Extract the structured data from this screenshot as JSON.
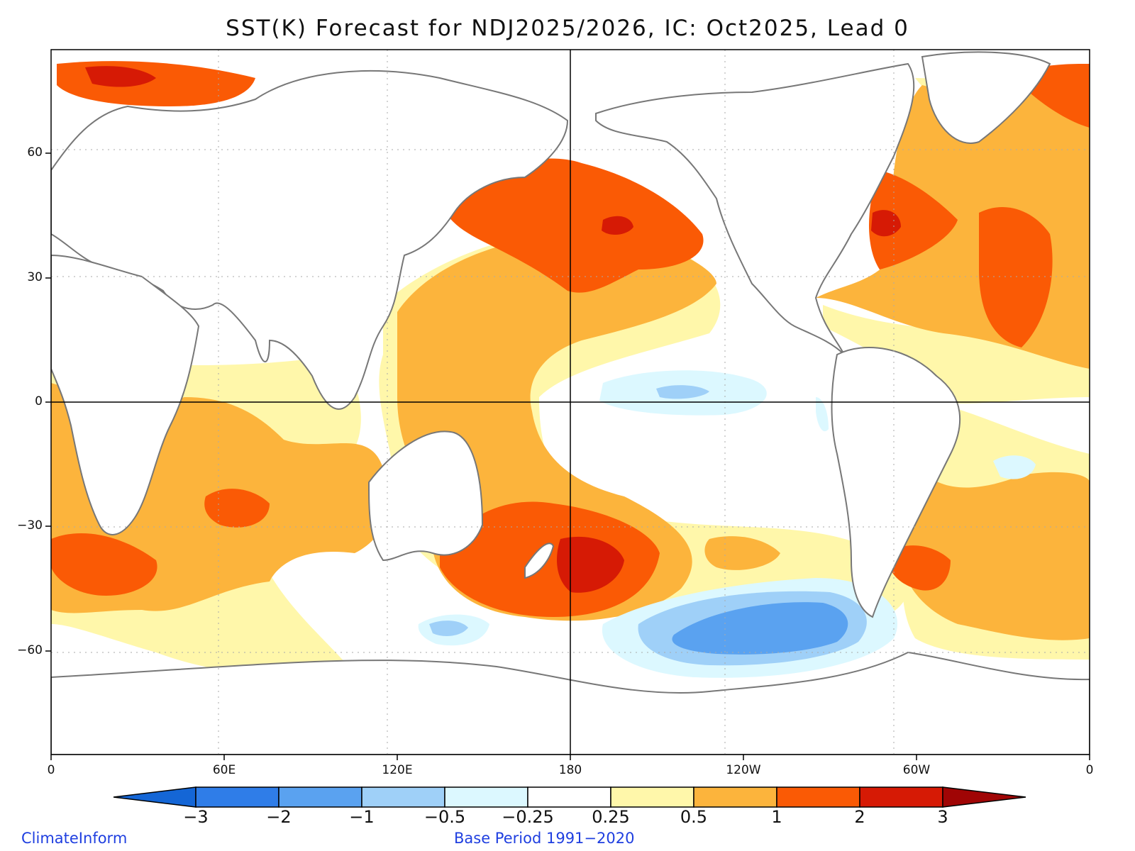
{
  "title": "SST(K) Forecast for NDJ2025/2026, IC: Oct2025, Lead 0",
  "map": {
    "projection": "cylindrical equidistant, 0-360E",
    "lon_range": [
      0,
      360
    ],
    "lat_range": [
      -85,
      85
    ],
    "x_ticks": [
      {
        "lon": 0,
        "label": "0"
      },
      {
        "lon": 60,
        "label": "60E"
      },
      {
        "lon": 120,
        "label": "120E"
      },
      {
        "lon": 180,
        "label": "180"
      },
      {
        "lon": 240,
        "label": "120W"
      },
      {
        "lon": 300,
        "label": "60W"
      },
      {
        "lon": 360,
        "label": "0"
      }
    ],
    "y_ticks": [
      {
        "lat": 60,
        "label": "60"
      },
      {
        "lat": 30,
        "label": "30"
      },
      {
        "lat": 0,
        "label": "0"
      },
      {
        "lat": -30,
        "label": "−30"
      },
      {
        "lat": -60,
        "label": "−60"
      }
    ]
  },
  "colorbar": {
    "levels": [
      "−3",
      "−2",
      "−1",
      "−0.5",
      "−0.25",
      "0.25",
      "0.5",
      "1",
      "2",
      "3"
    ],
    "colors": [
      "#1466d6",
      "#2f7de8",
      "#5aa2f0",
      "#9fd0f8",
      "#dcf8ff",
      "#ffffff",
      "#fff7aa",
      "#fcb43c",
      "#fa5a05",
      "#d61a05",
      "#a00505"
    ]
  },
  "footer": {
    "left": "ClimateInform",
    "center": "Base Period 1991−2020"
  }
}
